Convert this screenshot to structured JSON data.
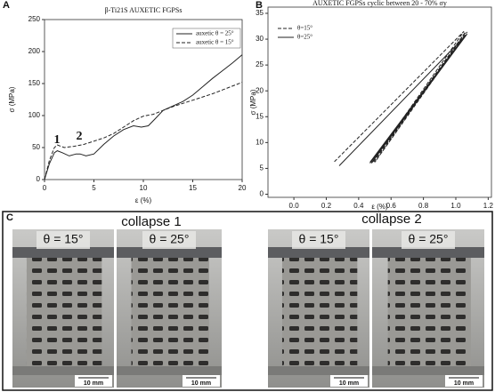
{
  "panels": [
    "A",
    "B",
    "C"
  ],
  "chart_data": [
    {
      "type": "line",
      "title": "β-Ti21S AUXETIC FGPSs",
      "xlabel": "ε (%)",
      "ylabel": "σ (MPa)",
      "xlim": [
        0,
        20
      ],
      "xticks": [
        0,
        5,
        10,
        15,
        20
      ],
      "ylim": [
        0,
        250
      ],
      "yticks": [
        0,
        50,
        100,
        150,
        200,
        250
      ],
      "legend": "upper right",
      "annotations": [
        "1",
        "2"
      ],
      "series": [
        {
          "name": "auxetic θ = 25°",
          "color": "#222222",
          "style": "solid",
          "x": [
            0,
            0.5,
            1,
            1.3,
            1.8,
            2.5,
            3.2,
            3.6,
            4.2,
            5,
            6,
            7,
            8,
            9,
            9.8,
            10.5,
            11.2,
            12,
            13,
            14,
            15,
            16,
            17,
            18,
            19,
            20
          ],
          "values": [
            0,
            25,
            42,
            45,
            42,
            37,
            40,
            40,
            37,
            40,
            55,
            68,
            78,
            84,
            82,
            84,
            95,
            108,
            115,
            122,
            132,
            145,
            158,
            170,
            182,
            195
          ]
        },
        {
          "name": "auxetic θ = 15°",
          "color": "#222222",
          "style": "dashed",
          "x": [
            0,
            0.5,
            1,
            1.3,
            2,
            3,
            4,
            5,
            6,
            7,
            8,
            9,
            10,
            11,
            12,
            13,
            14,
            15,
            16,
            17,
            18,
            19,
            20
          ],
          "values": [
            0,
            30,
            50,
            54,
            50,
            52,
            55,
            60,
            65,
            72,
            82,
            92,
            99,
            102,
            108,
            114,
            119,
            124,
            129,
            134,
            140,
            146,
            152
          ]
        }
      ]
    },
    {
      "type": "line",
      "title": "AUXETIC FGPSs cyclic between 20 - 70% σy",
      "xlabel": "ε (%)",
      "ylabel": "σ (MPa)",
      "xlim": [
        -0.16,
        1.22
      ],
      "xticks": [
        {
          "value": 0,
          "label": "0.0"
        },
        0.2,
        0.4,
        0.6,
        0.8,
        {
          "value": 1,
          "label": "1.0"
        },
        1.2
      ],
      "ylim": [
        -0.6,
        36.2
      ],
      "yticks": [
        0,
        5,
        10,
        15,
        20,
        25,
        30,
        35
      ],
      "legend": "upper left",
      "series": [
        {
          "name": "θ=15°",
          "color": "#222222",
          "style": "dashed",
          "x": [
            0.25,
            1.05,
            0.48,
            1.06,
            0.49,
            1.06,
            0.5,
            1.07
          ],
          "values": [
            6.3,
            31.5,
            6,
            31.4,
            6.1,
            31.3,
            6.2,
            31.4
          ]
        },
        {
          "name": "θ=25°",
          "color": "#222222",
          "style": "solid",
          "x": [
            0.28,
            1.07,
            0.47,
            1.07,
            0.47,
            1.06,
            0.48,
            1.07
          ],
          "values": [
            5.5,
            31,
            6,
            31,
            6.2,
            30.8,
            6.1,
            31
          ]
        }
      ]
    }
  ],
  "panel_c": {
    "groups": [
      {
        "title": "collapse 1",
        "photos": [
          {
            "label": "θ = 15°",
            "scale": "10 mm"
          },
          {
            "label": "θ = 25°",
            "scale": "10 mm"
          }
        ]
      },
      {
        "title": "collapse 2",
        "photos": [
          {
            "label": "θ = 15°",
            "scale": "10 mm"
          },
          {
            "label": "θ = 25°",
            "scale": "10 mm"
          }
        ]
      }
    ]
  }
}
